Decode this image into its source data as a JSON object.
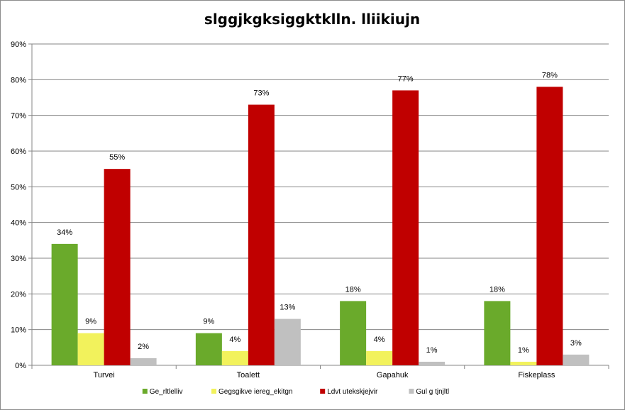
{
  "chart_data": {
    "type": "bar",
    "title": "slggjkgksiggktklln. lliikiujn",
    "categories": [
      "Turvei",
      "Toalett",
      "Gapahuk",
      "Fiskeplass"
    ],
    "series": [
      {
        "name": "Ge_rltlelliv",
        "color": "#6aaa2b",
        "values": [
          34,
          9,
          18,
          18
        ],
        "labels": [
          "34%",
          "9%",
          "18%",
          "18%"
        ]
      },
      {
        "name": "Gegsgikve iereg_ekitgn",
        "color": "#f2f25c",
        "values": [
          9,
          4,
          4,
          1
        ],
        "labels": [
          "9%",
          "4%",
          "4%",
          "1%"
        ]
      },
      {
        "name": "Ldvt utekskjejvir",
        "color": "#c00000",
        "values": [
          55,
          73,
          77,
          78
        ],
        "labels": [
          "55%",
          "73%",
          "77%",
          "78%"
        ]
      },
      {
        "name": "Gul g tjnjltl",
        "color": "#c0c0c0",
        "values": [
          2,
          13,
          1,
          3
        ],
        "labels": [
          "2%",
          "13%",
          "1%",
          "3%"
        ]
      }
    ],
    "ylim": [
      0,
      90
    ],
    "yticks": [
      "0%",
      "10%",
      "20%",
      "30%",
      "40%",
      "50%",
      "60%",
      "70%",
      "80%",
      "90%"
    ],
    "grid": true,
    "legend_position": "bottom"
  }
}
